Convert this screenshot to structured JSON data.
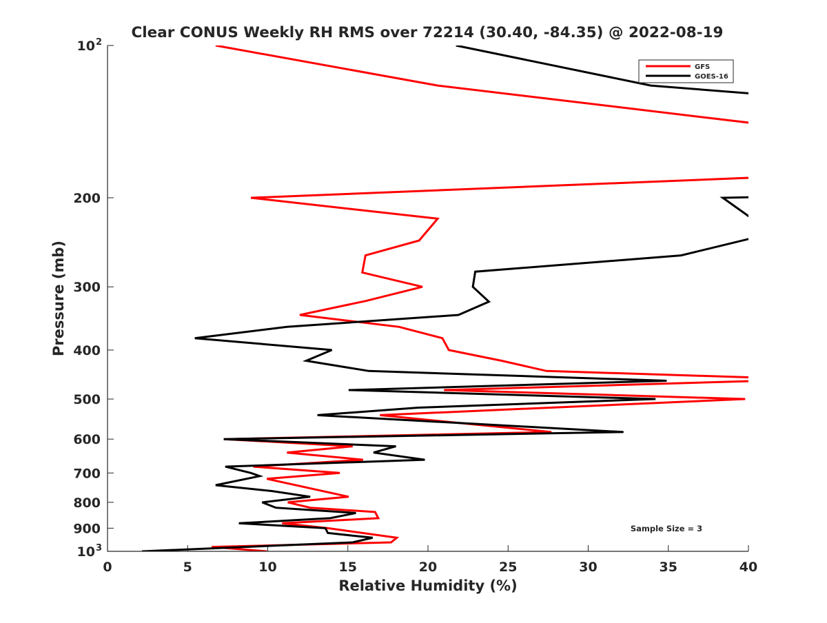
{
  "chart_data": {
    "type": "line",
    "title": "Clear CONUS Weekly RH RMS over 72214 (30.40, -84.35) @ 2022-08-19",
    "xlabel": "Relative Humidity (%)",
    "ylabel": "Pressure (mb)",
    "xlim": [
      0,
      40
    ],
    "ylim": [
      100,
      1000
    ],
    "yscale": "log",
    "y_reversed": true,
    "xticks": [
      "0",
      "5",
      "10",
      "15",
      "20",
      "25",
      "30",
      "35",
      "40"
    ],
    "yticks": [
      {
        "value": 100,
        "label": "10",
        "sup": "2"
      },
      {
        "value": 200,
        "label": "200",
        "sup": ""
      },
      {
        "value": 300,
        "label": "300",
        "sup": ""
      },
      {
        "value": 400,
        "label": "400",
        "sup": ""
      },
      {
        "value": 500,
        "label": "500",
        "sup": ""
      },
      {
        "value": 600,
        "label": "600",
        "sup": ""
      },
      {
        "value": 700,
        "label": "700",
        "sup": ""
      },
      {
        "value": 800,
        "label": "800",
        "sup": ""
      },
      {
        "value": 900,
        "label": "900",
        "sup": ""
      },
      {
        "value": 1000,
        "label": "10",
        "sup": "3"
      }
    ],
    "annotation": "Sample Size = 3",
    "legend": {
      "position": "top-right"
    },
    "series": [
      {
        "name": "GFS",
        "color": "#ff0000",
        "points": [
          [
            6.75,
            100
          ],
          [
            20.6,
            120
          ],
          [
            50,
            155
          ],
          [
            45,
            180
          ],
          [
            8.95,
            200
          ],
          [
            20.6,
            220
          ],
          [
            19.45,
            243
          ],
          [
            16.1,
            260
          ],
          [
            15.9,
            281
          ],
          [
            19.65,
            300
          ],
          [
            16.1,
            320
          ],
          [
            12.0,
            341
          ],
          [
            18.2,
            360
          ],
          [
            20.9,
            379
          ],
          [
            21.3,
            400
          ],
          [
            24.6,
            420
          ],
          [
            27.4,
            440
          ],
          [
            44,
            457
          ],
          [
            21.0,
            480
          ],
          [
            39.8,
            500
          ],
          [
            17.0,
            538
          ],
          [
            27.7,
            581
          ],
          [
            7.3,
            600
          ],
          [
            15.3,
            620
          ],
          [
            11.2,
            638
          ],
          [
            15.95,
            659
          ],
          [
            9.1,
            680
          ],
          [
            14.5,
            700
          ],
          [
            9.95,
            719
          ],
          [
            15.05,
            780
          ],
          [
            11.25,
            800
          ],
          [
            12.65,
            820
          ],
          [
            16.7,
            836
          ],
          [
            16.9,
            860
          ],
          [
            10.9,
            880
          ],
          [
            13.75,
            900
          ],
          [
            18.05,
            940
          ],
          [
            17.7,
            960
          ],
          [
            6.5,
            980
          ],
          [
            9.95,
            1000
          ]
        ]
      },
      {
        "name": "GOES-16",
        "color": "#000000",
        "points": [
          [
            21.75,
            100
          ],
          [
            33.9,
            120
          ],
          [
            45,
            128
          ],
          [
            45,
            198
          ],
          [
            38.4,
            200
          ],
          [
            41.5,
            235
          ],
          [
            35.8,
            260
          ],
          [
            22.95,
            280
          ],
          [
            22.8,
            300
          ],
          [
            23.8,
            321
          ],
          [
            21.9,
            341
          ],
          [
            11.2,
            360
          ],
          [
            5.45,
            379
          ],
          [
            14.0,
            400
          ],
          [
            12.4,
            420
          ],
          [
            16.3,
            440
          ],
          [
            34.9,
            460
          ],
          [
            15.05,
            480
          ],
          [
            34.2,
            500
          ],
          [
            19.4,
            520
          ],
          [
            13.1,
            538
          ],
          [
            32.2,
            581
          ],
          [
            7.25,
            600
          ],
          [
            18.0,
            620
          ],
          [
            16.6,
            638
          ],
          [
            19.8,
            659
          ],
          [
            7.35,
            680
          ],
          [
            8.95,
            700
          ],
          [
            9.5,
            710
          ],
          [
            6.75,
            740
          ],
          [
            10.25,
            760
          ],
          [
            12.65,
            780
          ],
          [
            9.65,
            800
          ],
          [
            10.5,
            820
          ],
          [
            15.5,
            840
          ],
          [
            13.9,
            860
          ],
          [
            8.2,
            880
          ],
          [
            13.6,
            900
          ],
          [
            13.75,
            920
          ],
          [
            16.55,
            940
          ],
          [
            15.3,
            960
          ],
          [
            2.15,
            1000
          ]
        ]
      }
    ]
  }
}
